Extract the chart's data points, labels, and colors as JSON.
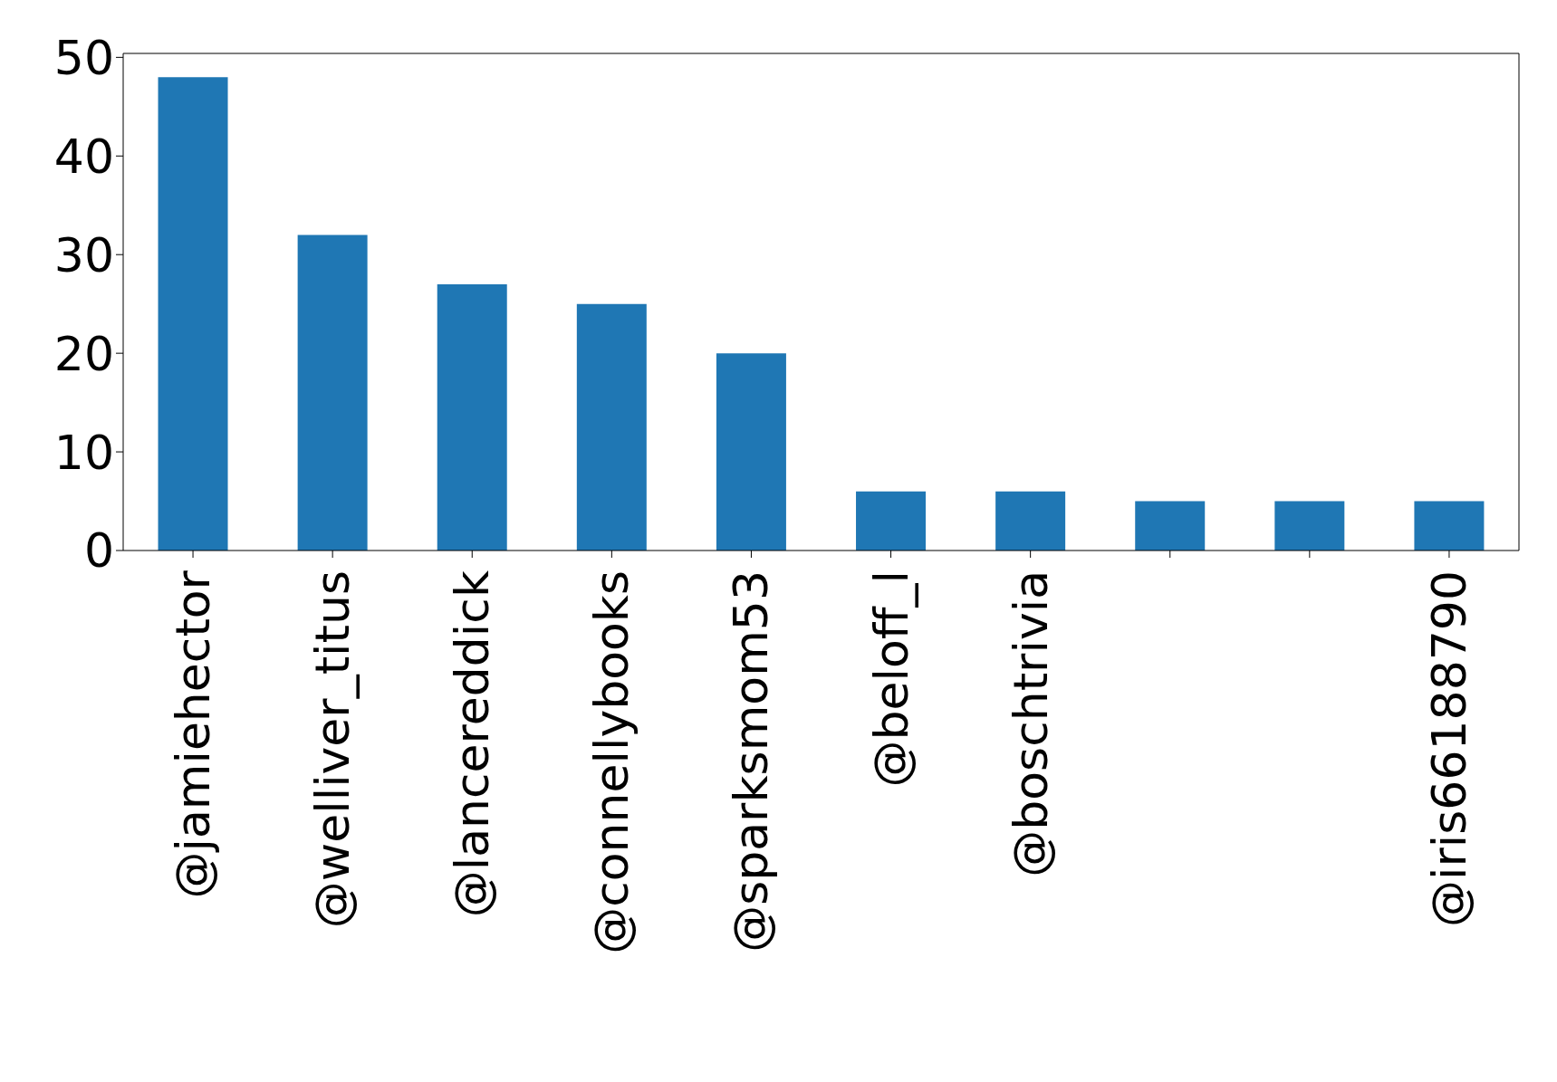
{
  "chart_data": {
    "type": "bar",
    "categories": [
      "@jamiehector",
      "@welliver_titus",
      "@lancereddick",
      "@connellybooks",
      "@sparksmom53",
      "@beloff_l",
      "@boschtrivia",
      null,
      null,
      "@iris66188790"
    ],
    "values": [
      48,
      32,
      27,
      25,
      20,
      6,
      6,
      5,
      5,
      5
    ],
    "color": "#1f77b4",
    "ylim": [
      0,
      50.4
    ],
    "yticks": [
      0,
      10,
      20,
      30,
      40,
      50
    ],
    "grid": false,
    "legend": false
  }
}
